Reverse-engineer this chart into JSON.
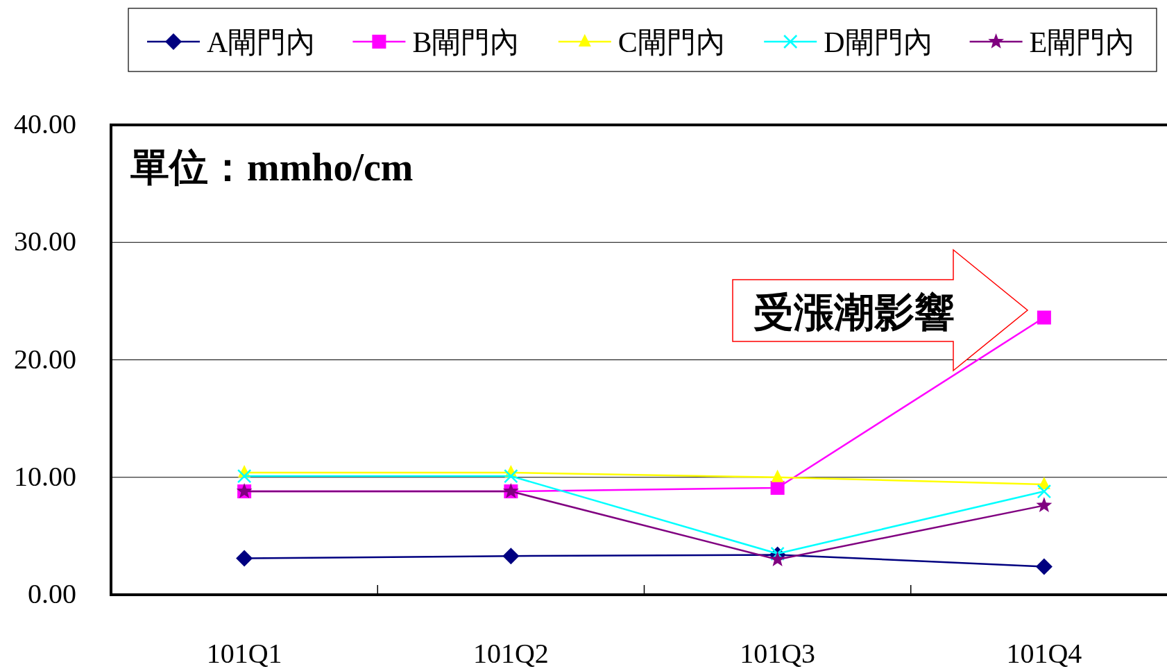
{
  "chart_data": {
    "type": "line",
    "categories": [
      "101Q1",
      "101Q2",
      "101Q3",
      "101Q4"
    ],
    "series": [
      {
        "name": "A閘門內",
        "color": "#000080",
        "marker": "diamond",
        "values": [
          3.1,
          3.3,
          3.4,
          2.4
        ]
      },
      {
        "name": "B閘門內",
        "color": "#ff00ff",
        "marker": "square",
        "values": [
          8.8,
          8.8,
          9.1,
          23.6
        ]
      },
      {
        "name": "C閘門內",
        "color": "#ffff00",
        "marker": "triangle",
        "values": [
          10.4,
          10.4,
          10.0,
          9.4
        ]
      },
      {
        "name": "D閘門內",
        "color": "#00ffff",
        "marker": "cross",
        "values": [
          10.1,
          10.1,
          3.5,
          8.8
        ]
      },
      {
        "name": "E閘門內",
        "color": "#800080",
        "marker": "star",
        "values": [
          8.8,
          8.8,
          3.0,
          7.6
        ]
      }
    ],
    "ylim": [
      0,
      40
    ],
    "yticks": [
      {
        "value": 0,
        "label": "0.00"
      },
      {
        "value": 10,
        "label": "10.00"
      },
      {
        "value": 20,
        "label": "20.00"
      },
      {
        "value": 30,
        "label": "30.00"
      },
      {
        "value": 40,
        "label": "40.00"
      }
    ],
    "grid": "y",
    "legend": "top",
    "line_style": "solid",
    "annotations": [
      "單位：mmho/cm",
      "受漲潮影響"
    ]
  }
}
